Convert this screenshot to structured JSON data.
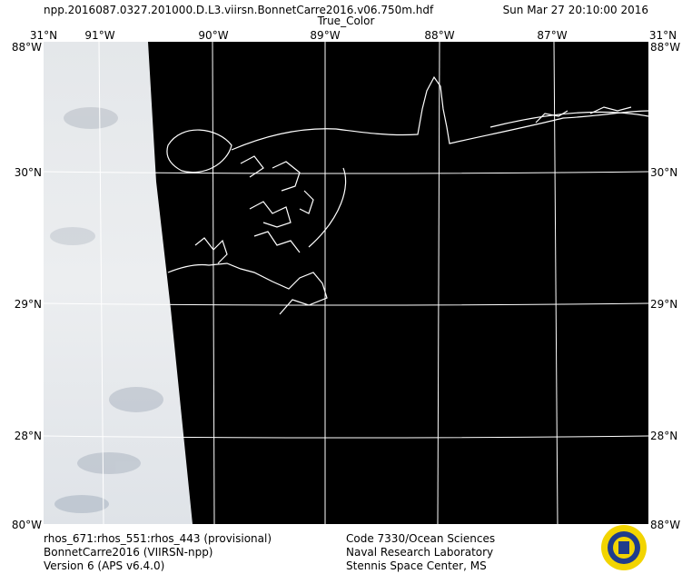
{
  "header": {
    "filename": "npp.2016087.0327.201000.D.L3.viirsn.BonnetCarre2016.v06.750m.hdf",
    "datetime": "Sun Mar 27 20:10:00 2016",
    "product": "True_Color"
  },
  "map": {
    "top_labels": [
      "31°N",
      "91°W",
      "90°W",
      "89°W",
      "88°W",
      "87°W",
      "31°N"
    ],
    "corner_labels": [
      "88°W",
      "88°W",
      "80°W",
      "88°W"
    ],
    "left_labels": [
      "30°N",
      "29°N",
      "28°N"
    ],
    "right_labels": [
      "30°N",
      "29°N",
      "28°N"
    ]
  },
  "footer": {
    "left": [
      "rhos_671:rhos_551:rhos_443 (provisional)",
      "BonnetCarre2016 (VIIRSN-npp)",
      "Version 6 (APS v6.4.0)"
    ],
    "center": [
      "Code 7330/Ocean Sciences",
      "Naval Research Laboratory",
      "Stennis Space Center, MS"
    ]
  }
}
